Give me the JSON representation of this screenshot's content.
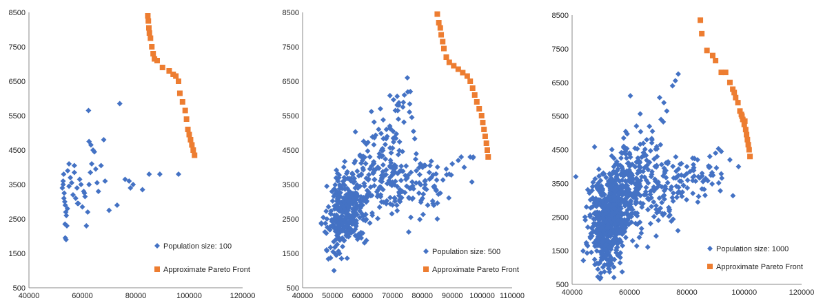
{
  "colors": {
    "population": "#4472C4",
    "pareto": "#ED7D31",
    "axis": "#888888"
  },
  "chart_data": [
    {
      "type": "scatter",
      "xlim": [
        40000,
        120000
      ],
      "ylim": [
        500,
        8500
      ],
      "x_ticks": [
        40000,
        60000,
        80000,
        100000,
        120000
      ],
      "y_ticks": [
        500,
        1500,
        2500,
        3500,
        4500,
        5500,
        6500,
        7500,
        8500
      ],
      "legend_position": "bottom-right",
      "series": [
        {
          "name": "Population size: 100",
          "marker": "diamond",
          "points": [
            [
              52500,
              3400
            ],
            [
              52800,
              3600
            ],
            [
              53000,
              3800
            ],
            [
              53200,
              3250
            ],
            [
              53400,
              3000
            ],
            [
              53600,
              2900
            ],
            [
              53800,
              2700
            ],
            [
              54000,
              2600
            ],
            [
              53500,
              2350
            ],
            [
              54200,
              2300
            ],
            [
              53600,
              1950
            ],
            [
              53900,
              1900
            ],
            [
              54500,
              3900
            ],
            [
              55000,
              3450
            ],
            [
              55500,
              3700
            ],
            [
              56000,
              3550
            ],
            [
              56500,
              3200
            ],
            [
              57000,
              3850
            ],
            [
              57500,
              3100
            ],
            [
              58000,
              3400
            ],
            [
              58500,
              2950
            ],
            [
              59000,
              3650
            ],
            [
              59500,
              3500
            ],
            [
              60000,
              2850
            ],
            [
              60500,
              3300
            ],
            [
              61000,
              3150
            ],
            [
              61500,
              2300
            ],
            [
              62000,
              2700
            ],
            [
              62500,
              3500
            ],
            [
              63000,
              3850
            ],
            [
              63500,
              4100
            ],
            [
              62500,
              4750
            ],
            [
              63200,
              4650
            ],
            [
              64000,
              4500
            ],
            [
              64500,
              4450
            ],
            [
              65000,
              3950
            ],
            [
              65500,
              3550
            ],
            [
              66000,
              3300
            ],
            [
              67000,
              4050
            ],
            [
              68000,
              4800
            ],
            [
              68500,
              3600
            ],
            [
              70000,
              2750
            ],
            [
              62300,
              5650
            ],
            [
              74000,
              5850
            ],
            [
              73000,
              2900
            ],
            [
              76000,
              3650
            ],
            [
              77500,
              3600
            ],
            [
              78000,
              3400
            ],
            [
              79000,
              3500
            ],
            [
              82500,
              3350
            ],
            [
              85000,
              3800
            ],
            [
              89000,
              3800
            ],
            [
              96000,
              3800
            ],
            [
              55000,
              4100
            ],
            [
              57000,
              4050
            ],
            [
              52800,
              3500
            ],
            [
              53100,
              3100
            ],
            [
              54400,
              2800
            ],
            [
              60800,
              3250
            ],
            [
              58200,
              2950
            ]
          ]
        },
        {
          "name": "Approximate Pareto Front",
          "marker": "square",
          "points": [
            [
              84500,
              8400
            ],
            [
              84700,
              8250
            ],
            [
              84900,
              8050
            ],
            [
              85100,
              7900
            ],
            [
              85500,
              7750
            ],
            [
              86000,
              7500
            ],
            [
              86500,
              7300
            ],
            [
              87000,
              7150
            ],
            [
              88000,
              7100
            ],
            [
              90000,
              6900
            ],
            [
              92500,
              6800
            ],
            [
              94000,
              6700
            ],
            [
              95000,
              6650
            ],
            [
              96000,
              6500
            ],
            [
              96500,
              6150
            ],
            [
              97500,
              5900
            ],
            [
              98500,
              5650
            ],
            [
              99000,
              5400
            ],
            [
              99500,
              5100
            ],
            [
              100000,
              4950
            ],
            [
              100500,
              4800
            ],
            [
              101000,
              4650
            ],
            [
              101500,
              4500
            ],
            [
              102000,
              4350
            ]
          ]
        }
      ]
    },
    {
      "type": "scatter",
      "xlim": [
        40000,
        110000
      ],
      "ylim": [
        500,
        8500
      ],
      "x_ticks": [
        40000,
        50000,
        60000,
        70000,
        80000,
        90000,
        100000,
        110000
      ],
      "y_ticks": [
        500,
        1500,
        2500,
        3500,
        4500,
        5500,
        6500,
        7500,
        8500
      ],
      "legend_position": "bottom-right",
      "series": [
        {
          "name": "Population size: 500",
          "marker": "diamond",
          "cloud": [
            {
              "cx": 55500,
              "cy": 2850,
              "sx": 3200,
              "sy": 500,
              "n": 240
            },
            {
              "cx": 53000,
              "cy": 2200,
              "sx": 3000,
              "sy": 450,
              "n": 70
            },
            {
              "cx": 63000,
              "cy": 3700,
              "sx": 4200,
              "sy": 600,
              "n": 90
            },
            {
              "cx": 70000,
              "cy": 4800,
              "sx": 3800,
              "sy": 700,
              "n": 55
            },
            {
              "cx": 80000,
              "cy": 3600,
              "sx": 7000,
              "sy": 350,
              "n": 70
            },
            {
              "cx": 72000,
              "cy": 3100,
              "sx": 4500,
              "sy": 400,
              "n": 35
            }
          ],
          "points": [
            [
              75000,
              6600
            ],
            [
              76000,
              6200
            ],
            [
              74000,
              6100
            ],
            [
              73500,
              5750
            ],
            [
              72000,
              5400
            ],
            [
              71000,
              5650
            ],
            [
              76500,
              5450
            ],
            [
              68000,
              5100
            ],
            [
              93000,
              4300
            ],
            [
              96000,
              4300
            ],
            [
              97000,
              4300
            ],
            [
              85000,
              2500
            ],
            [
              88000,
              3950
            ],
            [
              90000,
              4100
            ],
            [
              86000,
              3250
            ],
            [
              78000,
              3900
            ],
            [
              50500,
              1000
            ],
            [
              48000,
              1600
            ],
            [
              53000,
              1350
            ],
            [
              92000,
              4200
            ],
            [
              94000,
              4000
            ],
            [
              89000,
              3800
            ],
            [
              83000,
              3700
            ],
            [
              81000,
              4050
            ]
          ]
        },
        {
          "name": "Approximate Pareto Front",
          "marker": "square",
          "points": [
            [
              85000,
              8450
            ],
            [
              85500,
              8200
            ],
            [
              86000,
              8050
            ],
            [
              86300,
              7850
            ],
            [
              86800,
              7650
            ],
            [
              87200,
              7450
            ],
            [
              88000,
              7200
            ],
            [
              89000,
              7050
            ],
            [
              90500,
              6950
            ],
            [
              92000,
              6850
            ],
            [
              93500,
              6750
            ],
            [
              95000,
              6650
            ],
            [
              96000,
              6500
            ],
            [
              96800,
              6300
            ],
            [
              97500,
              6100
            ],
            [
              98200,
              5900
            ],
            [
              99000,
              5700
            ],
            [
              99800,
              5500
            ],
            [
              100200,
              5300
            ],
            [
              100600,
              5100
            ],
            [
              101000,
              4900
            ],
            [
              101400,
              4700
            ],
            [
              101700,
              4500
            ],
            [
              102000,
              4300
            ]
          ]
        }
      ]
    },
    {
      "type": "scatter",
      "xlim": [
        40000,
        120000
      ],
      "ylim": [
        500,
        8500
      ],
      "x_ticks": [
        40000,
        60000,
        80000,
        100000,
        120000
      ],
      "y_ticks": [
        500,
        1500,
        2500,
        3500,
        4500,
        5500,
        6500,
        7500,
        8500
      ],
      "legend_position": "bottom-right",
      "series": [
        {
          "name": "Population size: 1000",
          "marker": "diamond",
          "cloud": [
            {
              "cx": 53000,
              "cy": 2550,
              "sx": 3600,
              "sy": 650,
              "n": 480
            },
            {
              "cx": 51500,
              "cy": 1900,
              "sx": 3000,
              "sy": 500,
              "n": 130
            },
            {
              "cx": 59000,
              "cy": 3400,
              "sx": 4500,
              "sy": 600,
              "n": 140
            },
            {
              "cx": 64000,
              "cy": 4200,
              "sx": 5000,
              "sy": 650,
              "n": 60
            },
            {
              "cx": 78000,
              "cy": 3550,
              "sx": 9000,
              "sy": 400,
              "n": 95
            },
            {
              "cx": 70000,
              "cy": 2900,
              "sx": 5000,
              "sy": 500,
              "n": 50
            }
          ],
          "points": [
            [
              77000,
              6750
            ],
            [
              76000,
              6550
            ],
            [
              75000,
              6400
            ],
            [
              72000,
              5900
            ],
            [
              73000,
              5650
            ],
            [
              71000,
              5400
            ],
            [
              70500,
              6050
            ],
            [
              68000,
              5050
            ],
            [
              66000,
              4800
            ],
            [
              90000,
              4400
            ],
            [
              92000,
              4450
            ],
            [
              95000,
              4200
            ],
            [
              98000,
              4000
            ],
            [
              88000,
              4300
            ],
            [
              50000,
              700
            ],
            [
              49000,
              950
            ],
            [
              45000,
              2800
            ],
            [
              44500,
              2500
            ],
            [
              84000,
              3700
            ],
            [
              86000,
              3600
            ],
            [
              80000,
              4000
            ],
            [
              82000,
              3900
            ],
            [
              60000,
              4400
            ],
            [
              58000,
              4600
            ]
          ]
        },
        {
          "name": "Approximate Pareto Front",
          "marker": "square",
          "points": [
            [
              84700,
              8350
            ],
            [
              85200,
              7950
            ],
            [
              87000,
              7450
            ],
            [
              89000,
              7300
            ],
            [
              90000,
              7150
            ],
            [
              92000,
              6800
            ],
            [
              93500,
              6800
            ],
            [
              95000,
              6500
            ],
            [
              96000,
              6300
            ],
            [
              97000,
              6050
            ],
            [
              97800,
              5900
            ],
            [
              98500,
              5650
            ],
            [
              99000,
              5550
            ],
            [
              99500,
              5400
            ],
            [
              100000,
              5250
            ],
            [
              100500,
              5100
            ],
            [
              100800,
              4950
            ],
            [
              101100,
              4800
            ],
            [
              101400,
              4650
            ],
            [
              101700,
              4500
            ],
            [
              102000,
              4300
            ],
            [
              100200,
              5350
            ],
            [
              99200,
              5500
            ],
            [
              96500,
              6200
            ]
          ]
        }
      ]
    }
  ]
}
